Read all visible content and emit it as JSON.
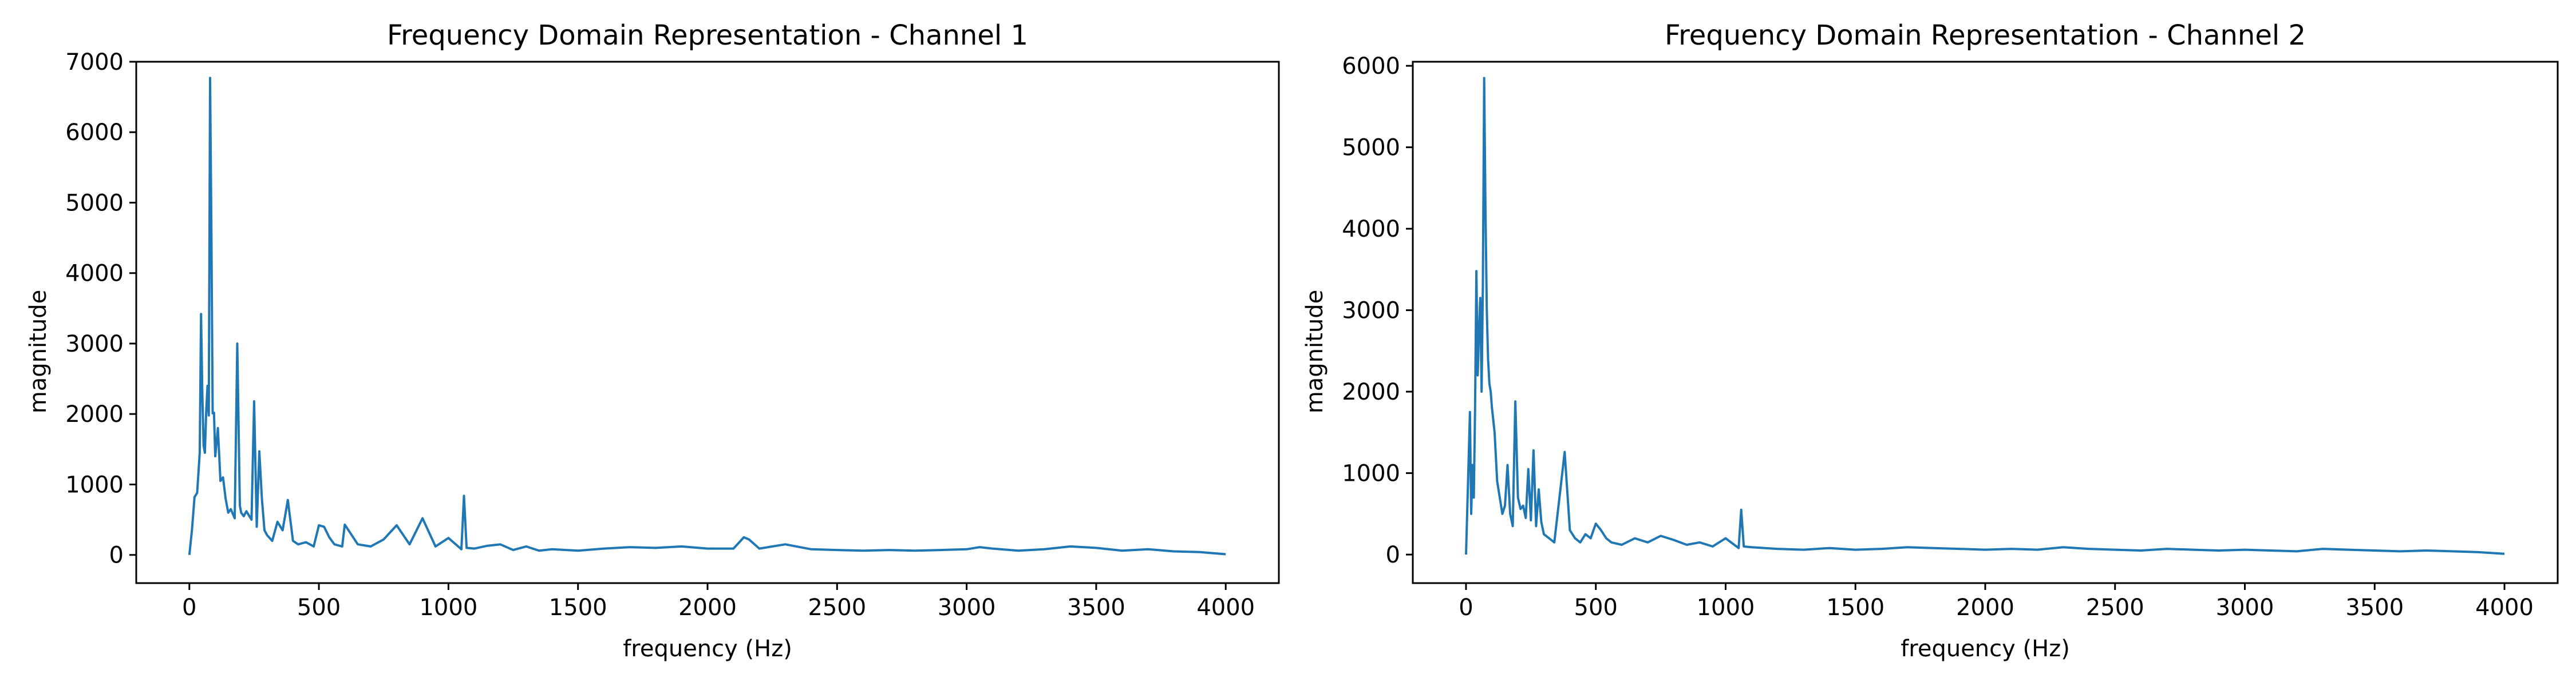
{
  "chart_data": [
    {
      "type": "line",
      "title": "Frequency Domain Representation - Channel 1",
      "xlabel": "frequency (Hz)",
      "ylabel": "magnitude",
      "xlim": [
        -205,
        4205
      ],
      "ylim": [
        -400,
        7000
      ],
      "xticks": [
        0,
        500,
        1000,
        1500,
        2000,
        2500,
        3000,
        3500,
        4000
      ],
      "yticks": [
        0,
        1000,
        2000,
        3000,
        4000,
        5000,
        6000,
        7000
      ],
      "grid": false,
      "line_color": "#1f77b4",
      "series": [
        {
          "x": [
            0,
            10,
            20,
            30,
            40,
            45,
            50,
            55,
            60,
            65,
            70,
            75,
            80,
            85,
            90,
            95,
            100,
            110,
            120,
            130,
            140,
            150,
            160,
            175,
            185,
            195,
            200,
            210,
            220,
            240,
            250,
            260,
            270,
            280,
            290,
            300,
            320,
            340,
            360,
            380,
            400,
            420,
            450,
            480,
            500,
            520,
            540,
            560,
            590,
            600,
            650,
            700,
            750,
            800,
            850,
            900,
            950,
            1000,
            1050,
            1060,
            1070,
            1100,
            1150,
            1200,
            1250,
            1300,
            1350,
            1400,
            1500,
            1600,
            1700,
            1800,
            1900,
            2000,
            2100,
            2140,
            2160,
            2200,
            2300,
            2400,
            2500,
            2600,
            2700,
            2800,
            2900,
            3000,
            3050,
            3100,
            3200,
            3300,
            3400,
            3500,
            3600,
            3700,
            3800,
            3900,
            4000
          ],
          "y": [
            0,
            350,
            820,
            880,
            1450,
            3420,
            2300,
            1550,
            1450,
            2030,
            2400,
            1980,
            6770,
            4580,
            2010,
            2020,
            1400,
            1800,
            1050,
            1100,
            800,
            600,
            650,
            520,
            3000,
            700,
            600,
            550,
            620,
            500,
            2180,
            400,
            1470,
            800,
            350,
            280,
            200,
            470,
            350,
            780,
            200,
            150,
            180,
            120,
            420,
            400,
            250,
            150,
            120,
            430,
            150,
            120,
            220,
            420,
            150,
            520,
            120,
            240,
            80,
            840,
            100,
            90,
            130,
            150,
            70,
            120,
            60,
            80,
            60,
            90,
            110,
            100,
            120,
            90,
            90,
            250,
            220,
            90,
            150,
            80,
            70,
            60,
            70,
            60,
            70,
            80,
            110,
            90,
            60,
            80,
            120,
            100,
            60,
            80,
            50,
            40,
            10
          ]
        }
      ]
    },
    {
      "type": "line",
      "title": "Frequency Domain Representation - Channel 2",
      "xlabel": "frequency (Hz)",
      "ylabel": "magnitude",
      "xlim": [
        -205,
        4205
      ],
      "ylim": [
        -350,
        6050
      ],
      "xticks": [
        0,
        500,
        1000,
        1500,
        2000,
        2500,
        3000,
        3500,
        4000
      ],
      "yticks": [
        0,
        1000,
        2000,
        3000,
        4000,
        5000,
        6000
      ],
      "grid": false,
      "line_color": "#1f77b4",
      "series": [
        {
          "x": [
            0,
            10,
            15,
            20,
            25,
            30,
            35,
            40,
            45,
            50,
            55,
            60,
            65,
            70,
            75,
            80,
            85,
            90,
            95,
            100,
            110,
            120,
            130,
            140,
            150,
            160,
            170,
            180,
            190,
            200,
            210,
            220,
            230,
            240,
            250,
            260,
            270,
            280,
            290,
            300,
            320,
            340,
            360,
            380,
            400,
            420,
            440,
            460,
            480,
            500,
            520,
            540,
            560,
            600,
            650,
            700,
            750,
            800,
            850,
            900,
            950,
            1000,
            1050,
            1060,
            1070,
            1100,
            1200,
            1300,
            1400,
            1500,
            1600,
            1700,
            1800,
            1900,
            2000,
            2100,
            2200,
            2300,
            2400,
            2500,
            2600,
            2700,
            2800,
            2900,
            3000,
            3100,
            3200,
            3300,
            3400,
            3500,
            3600,
            3700,
            3800,
            3900,
            4000
          ],
          "y": [
            0,
            1150,
            1750,
            500,
            1100,
            700,
            1800,
            3480,
            2200,
            2750,
            3150,
            2000,
            3300,
            5850,
            4200,
            3000,
            2400,
            2100,
            2000,
            1800,
            1500,
            900,
            700,
            500,
            600,
            1100,
            500,
            350,
            1880,
            700,
            560,
            600,
            450,
            1050,
            420,
            1280,
            350,
            800,
            400,
            250,
            200,
            150,
            700,
            1260,
            300,
            200,
            150,
            250,
            200,
            380,
            300,
            200,
            150,
            120,
            200,
            150,
            230,
            180,
            120,
            150,
            100,
            200,
            80,
            550,
            100,
            90,
            70,
            60,
            80,
            60,
            70,
            90,
            80,
            70,
            60,
            70,
            60,
            90,
            70,
            60,
            50,
            70,
            60,
            50,
            60,
            50,
            40,
            70,
            60,
            50,
            40,
            50,
            40,
            30,
            10
          ]
        }
      ]
    }
  ]
}
